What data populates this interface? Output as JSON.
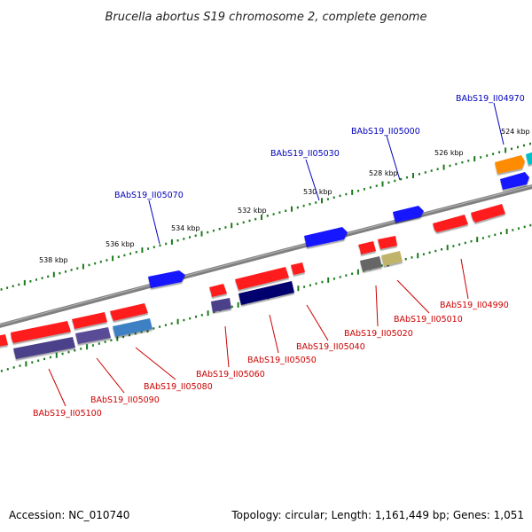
{
  "title": "Brucella abortus S19 chromosome 2, complete genome",
  "footer": {
    "accession": "Accession: NC_010740",
    "topology": "Topology: circular; Length: 1,161,449 bp; Genes: 1,051"
  },
  "colors": {
    "backbone": "#808080",
    "tick": "#1a7a1a",
    "label_forward": "#0000bb",
    "label_reverse": "#cc0000"
  },
  "kbp_labels": [
    "524 kbp",
    "526 kbp",
    "528 kbp",
    "530 kbp",
    "532 kbp",
    "534 kbp",
    "536 kbp",
    "538 kbp"
  ],
  "genes_forward": [
    {
      "name": "BAbS19_II04970",
      "color": "#0000ee"
    },
    {
      "name": "BAbS19_II05000",
      "color": "#0000ee"
    },
    {
      "name": "BAbS19_II05030",
      "color": "#0000ee"
    },
    {
      "name": "BAbS19_II05070",
      "color": "#0000ee"
    }
  ],
  "genes_reverse": [
    {
      "name": "BAbS19_II04990",
      "color": "#dd0000"
    },
    {
      "name": "BAbS19_II05010",
      "color": "#b5ac6a"
    },
    {
      "name": "BAbS19_II05020",
      "color": "#666666"
    },
    {
      "name": "BAbS19_II05040",
      "color": "#dd0000"
    },
    {
      "name": "BAbS19_II05050",
      "color": "#000070"
    },
    {
      "name": "BAbS19_II05060",
      "color": "#4b3f8a"
    },
    {
      "name": "BAbS19_II05080",
      "color": "#3d7fc0"
    },
    {
      "name": "BAbS19_II05090",
      "color": "#4b3f8a"
    },
    {
      "name": "BAbS19_II05100",
      "color": "#4b3f8a"
    }
  ]
}
